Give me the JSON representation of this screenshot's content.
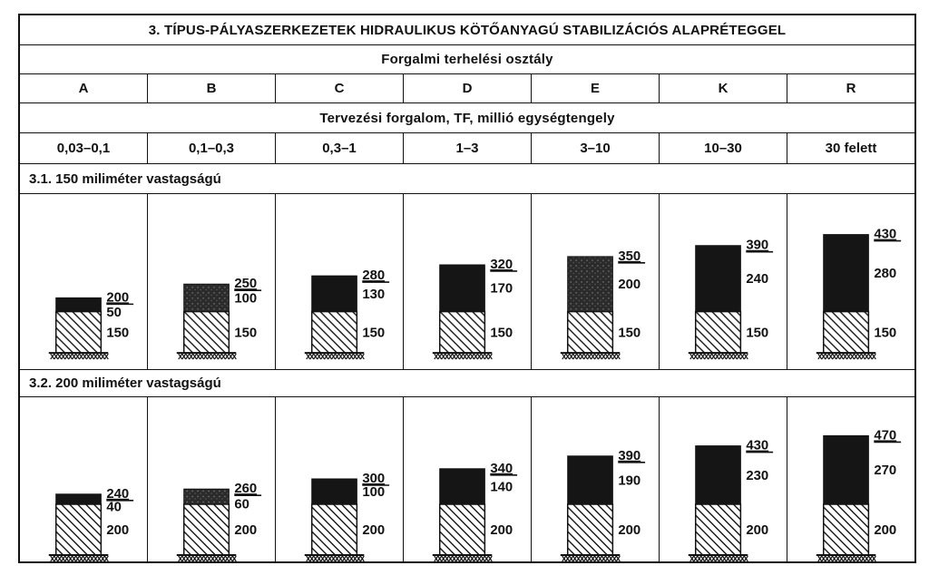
{
  "title": "3. TÍPUS-PÁLYASZERKEZETEK HIDRAULIKUS KÖTŐANYAGÚ STABILIZÁCIÓS ALAPRÉTEGGEL",
  "traffic_class_header": "Forgalmi terhelési osztály",
  "traffic_classes": [
    "A",
    "B",
    "C",
    "D",
    "E",
    "K",
    "R"
  ],
  "design_traffic_header": "Tervezési forgalom, TF, millió egységtengely",
  "design_traffic_ranges": [
    "0,03–0,1",
    "0,1–0,3",
    "0,3–1",
    "1–3",
    "3–10",
    "10–30",
    "30 felett"
  ],
  "sections": [
    {
      "title": "3.1.  150 miliméter vastagságú",
      "columns": [
        {
          "total": "200",
          "asphalt": "50",
          "base": "150",
          "shade": "dark"
        },
        {
          "total": "250",
          "asphalt": "100",
          "base": "150",
          "shade": "speckled"
        },
        {
          "total": "280",
          "asphalt": "130",
          "base": "150",
          "shade": "dark"
        },
        {
          "total": "320",
          "asphalt": "170",
          "base": "150",
          "shade": "dark"
        },
        {
          "total": "350",
          "asphalt": "200",
          "base": "150",
          "shade": "speckled"
        },
        {
          "total": "390",
          "asphalt": "240",
          "base": "150",
          "shade": "dark"
        },
        {
          "total": "430",
          "asphalt": "280",
          "base": "150",
          "shade": "dark"
        }
      ]
    },
    {
      "title": "3.2.  200 miliméter vastagságú",
      "columns": [
        {
          "total": "240",
          "asphalt": "40",
          "base": "200",
          "shade": "dark"
        },
        {
          "total": "260",
          "asphalt": "60",
          "base": "200",
          "shade": "speckled"
        },
        {
          "total": "300",
          "asphalt": "100",
          "base": "200",
          "shade": "dark"
        },
        {
          "total": "340",
          "asphalt": "140",
          "base": "200",
          "shade": "dark"
        },
        {
          "total": "390",
          "asphalt": "190",
          "base": "200",
          "shade": "dark"
        },
        {
          "total": "430",
          "asphalt": "230",
          "base": "200",
          "shade": "dark"
        },
        {
          "total": "470",
          "asphalt": "270",
          "base": "200",
          "shade": "dark"
        }
      ]
    }
  ],
  "colors": {
    "ink": "#111111",
    "asphalt": "#151515",
    "paper": "#ffffff"
  }
}
